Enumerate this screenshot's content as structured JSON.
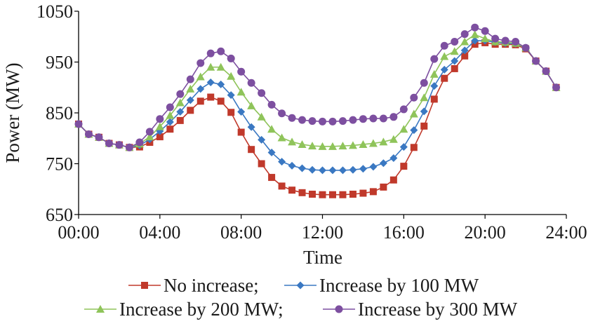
{
  "chart_data": {
    "type": "line",
    "xlabel": "Time",
    "ylabel": "Power (MW)",
    "ylim": [
      650,
      1050
    ],
    "yticks": [
      650,
      750,
      850,
      950,
      1050
    ],
    "xlim": [
      0,
      24
    ],
    "xticks": [
      0,
      4,
      8,
      12,
      16,
      20,
      24
    ],
    "xtick_labels": [
      "00:00",
      "04:00",
      "08:00",
      "12:00",
      "16:00",
      "20:00",
      "24:00"
    ],
    "legend_position": "bottom",
    "grid": false,
    "x": [
      0,
      0.5,
      1,
      1.5,
      2,
      2.5,
      3,
      3.5,
      4,
      4.5,
      5,
      5.5,
      6,
      6.5,
      7,
      7.5,
      8,
      8.5,
      9,
      9.5,
      10,
      10.5,
      11,
      11.5,
      12,
      12.5,
      13,
      13.5,
      14,
      14.5,
      15,
      15.5,
      16,
      16.5,
      17,
      17.5,
      18,
      18.5,
      19,
      19.5,
      20,
      20.5,
      21,
      21.5,
      22,
      22.5,
      23,
      23.5
    ],
    "series": [
      {
        "name": "No increase;",
        "color": "#c0392b",
        "marker": "square",
        "values": [
          828,
          808,
          802,
          790,
          787,
          782,
          783,
          792,
          803,
          818,
          835,
          855,
          873,
          881,
          873,
          851,
          812,
          778,
          750,
          723,
          706,
          698,
          693,
          690,
          689,
          689,
          689,
          690,
          692,
          695,
          704,
          718,
          745,
          782,
          824,
          877,
          918,
          937,
          962,
          985,
          988,
          985,
          985,
          984,
          976,
          952,
          932,
          900
        ]
      },
      {
        "name": "Increase by 100 MW",
        "color": "#3a78c2",
        "marker": "diamond",
        "values": [
          828,
          808,
          802,
          790,
          787,
          782,
          786,
          798,
          814,
          832,
          852,
          875,
          897,
          910,
          906,
          885,
          852,
          822,
          797,
          772,
          754,
          746,
          741,
          738,
          737,
          737,
          737,
          738,
          740,
          744,
          751,
          761,
          783,
          816,
          853,
          903,
          935,
          952,
          973,
          992,
          992,
          989,
          987,
          986,
          978,
          952,
          932,
          900
        ]
      },
      {
        "name": "Increase by 200 MW;",
        "color": "#8fc45a",
        "marker": "triangle",
        "values": [
          828,
          808,
          802,
          790,
          787,
          782,
          789,
          803,
          823,
          845,
          870,
          897,
          921,
          940,
          940,
          922,
          891,
          864,
          842,
          818,
          801,
          793,
          788,
          785,
          784,
          784,
          785,
          786,
          788,
          790,
          793,
          798,
          818,
          848,
          880,
          926,
          961,
          971,
          990,
          1004,
          996,
          990,
          989,
          987,
          978,
          952,
          932,
          900
        ]
      },
      {
        "name": "Increase by 300 MW",
        "color": "#7d4fa0",
        "marker": "circle",
        "values": [
          828,
          808,
          802,
          790,
          787,
          782,
          792,
          813,
          838,
          861,
          887,
          916,
          948,
          967,
          971,
          957,
          931,
          909,
          889,
          866,
          849,
          840,
          836,
          834,
          833,
          833,
          834,
          836,
          838,
          839,
          839,
          842,
          857,
          880,
          909,
          956,
          982,
          990,
          1005,
          1018,
          1011,
          996,
          992,
          990,
          978,
          952,
          932,
          900
        ]
      }
    ]
  }
}
